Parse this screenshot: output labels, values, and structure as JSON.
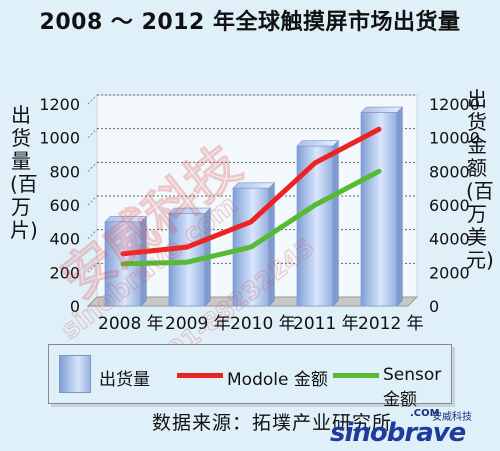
{
  "chart_data": {
    "type": "bar",
    "title": "2008 ～ 2012 年全球触摸屏市场出货量",
    "categories": [
      "2008 年",
      "2009 年",
      "2010 年",
      "2011 年",
      "2012 年"
    ],
    "ylabel_left": "出货量(百万片)",
    "ylabel_right": "出货金额(百万美元)",
    "y_left_ticks": [
      "1200",
      "1000",
      "800",
      "600",
      "400",
      "200",
      "0"
    ],
    "y_right_ticks": [
      "12000",
      "10000",
      "8000",
      "6000",
      "4000",
      "2000",
      "0"
    ],
    "ylim_left": [
      0,
      1200
    ],
    "ylim_right": [
      0,
      12000
    ],
    "grid": true,
    "legend_position": "bottom",
    "series": [
      {
        "name": "出货量",
        "kind": "bar",
        "axis": "left",
        "values": [
          500,
          550,
          700,
          950,
          1150
        ],
        "color": "#9ab3df"
      },
      {
        "name": "Modole 金额",
        "kind": "line",
        "axis": "right",
        "values": [
          3100,
          3500,
          5000,
          8500,
          10500
        ],
        "color": "#ee2222"
      },
      {
        "name": "Sensor 金额",
        "kind": "line",
        "axis": "right",
        "values": [
          2500,
          2600,
          3500,
          6000,
          8000
        ],
        "color": "#55bb33"
      }
    ]
  },
  "legend": {
    "bar_label": "出货量",
    "modole_label": "Modole 金额",
    "sensor_label": "Sensor 金额"
  },
  "source_text": "数据来源：拓墣产业研究所",
  "watermark": {
    "brand": "sinobrave",
    "domain_suffix": ".COM",
    "cn_name": "安威科技",
    "diag_cn": "安威科技",
    "diag_url": "sinobrave.com",
    "diag_phone": "0591-88232245"
  }
}
